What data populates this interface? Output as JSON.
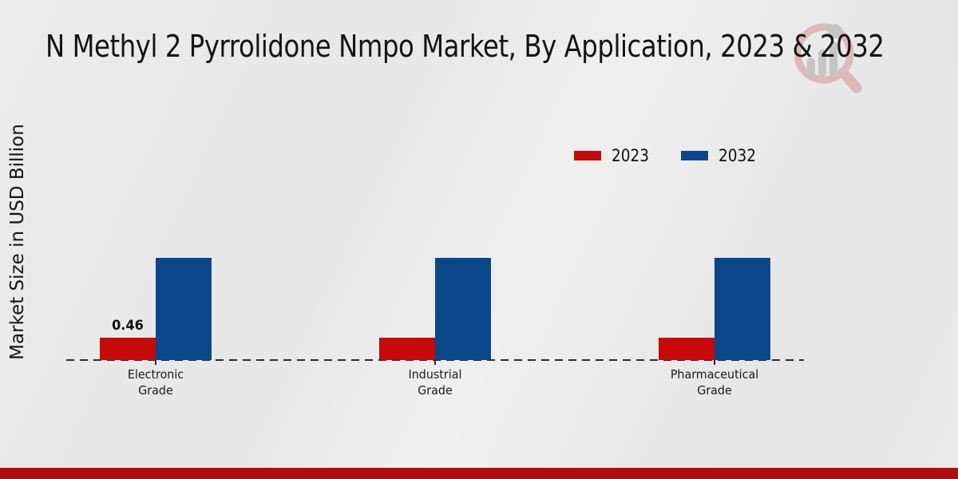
{
  "page": {
    "background_color": "#e9e9e9",
    "footer_band_color": "#b30c0c"
  },
  "header": {
    "title": "N Methyl 2 Pyrrolidone Nmpo Market, By Application, 2023 & 2032"
  },
  "watermark": {
    "ring_color": "#dcb9ba",
    "bars_color": "#c5c5c5"
  },
  "legend": {
    "items": [
      {
        "label": "2023",
        "color": "#c60909"
      },
      {
        "label": "2032",
        "color": "#09478a"
      }
    ]
  },
  "chart_data": {
    "type": "bar",
    "title": "N Methyl 2 Pyrrolidone Nmpo Market, By Application, 2023 & 2032",
    "xlabel": "",
    "ylabel": "Market Size in USD Billion",
    "categories": [
      "Electronic Grade",
      "Industrial Grade",
      "Pharmaceutical Grade"
    ],
    "series": [
      {
        "name": "2023",
        "color": "#c60909",
        "values": [
          0.46,
          0.46,
          0.46
        ],
        "value_labels": [
          "0.46",
          "",
          ""
        ]
      },
      {
        "name": "2032",
        "color": "#09478a",
        "values": [
          2.1,
          2.1,
          2.1
        ],
        "value_labels": [
          "",
          "",
          ""
        ]
      }
    ],
    "ylim": [
      0,
      2.4
    ],
    "grid": false,
    "legend_position": "upper-right",
    "baseline_style": "dashed"
  }
}
